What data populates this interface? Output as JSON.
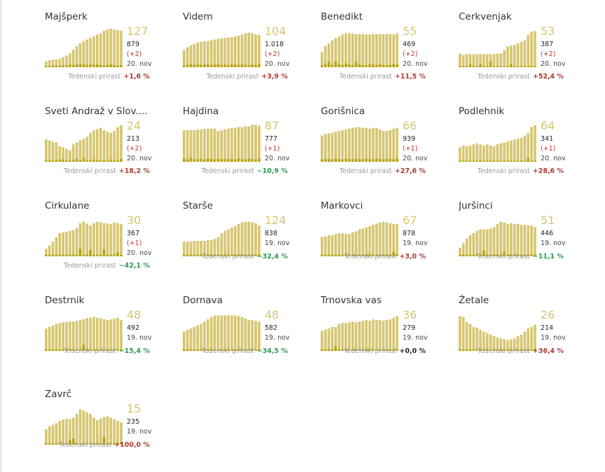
{
  "weekly_label": "Tedenski prirast",
  "colors": {
    "bar": "#d6c671",
    "bar_dark": "#b7a40e",
    "up": "#b03a2e",
    "down": "#2e9a54",
    "flat": "#222222"
  },
  "chart_data": [
    {
      "type": "bar",
      "title": "Majšperk",
      "current": "127",
      "total": "879",
      "change": "(+2)",
      "date": "20. nov",
      "weekly": "+1,6 %",
      "trend": "up",
      "values": [
        15,
        18,
        20,
        20,
        22,
        26,
        30,
        36,
        45,
        55,
        62,
        68,
        72,
        76,
        80,
        85,
        88,
        95,
        98,
        100,
        98,
        96,
        95
      ],
      "dark": [
        3,
        3,
        4,
        4,
        4,
        5,
        5,
        7,
        6,
        7,
        8,
        8,
        6,
        7,
        6,
        7,
        6,
        5,
        6,
        8,
        5,
        4,
        5
      ]
    },
    {
      "type": "bar",
      "title": "Videm",
      "current": "104",
      "total": "1.018",
      "change": "(+2)",
      "date": "20. nov",
      "weekly": "+3,9 %",
      "trend": "up",
      "values": [
        45,
        52,
        57,
        60,
        64,
        66,
        67,
        68,
        70,
        72,
        74,
        75,
        76,
        77,
        78,
        80,
        82,
        85,
        88,
        90,
        88,
        85,
        84
      ],
      "dark": [
        4,
        6,
        8,
        6,
        8,
        6,
        7,
        8,
        6,
        7,
        8,
        6,
        7,
        6,
        8,
        7,
        6,
        8,
        7,
        6,
        7,
        6,
        8
      ]
    },
    {
      "type": "bar",
      "title": "Benedikt",
      "current": "55",
      "total": "469",
      "change": "(+2)",
      "date": "20. nov",
      "weekly": "+11,5 %",
      "trend": "up",
      "values": [
        40,
        55,
        62,
        70,
        76,
        80,
        85,
        88,
        88,
        88,
        86,
        86,
        86,
        85,
        85,
        86,
        86,
        86,
        86,
        86,
        86,
        85,
        88
      ],
      "dark": [
        5,
        8,
        14,
        6,
        15,
        8,
        6,
        10,
        7,
        6,
        14,
        8,
        6,
        5,
        8,
        7,
        6,
        8,
        6,
        5,
        6,
        8,
        8
      ]
    },
    {
      "type": "bar",
      "title": "Cerkvenjak",
      "current": "53",
      "total": "387",
      "change": "(+2)",
      "date": "20. nov",
      "weekly": "+52,4 %",
      "trend": "up",
      "values": [
        36,
        32,
        34,
        34,
        34,
        34,
        34,
        34,
        34,
        34,
        34,
        35,
        36,
        44,
        54,
        56,
        58,
        62,
        66,
        70,
        84,
        92,
        94
      ],
      "dark": [
        3,
        3,
        3,
        8,
        3,
        3,
        8,
        3,
        3,
        15,
        3,
        3,
        3,
        3,
        3,
        8,
        3,
        3,
        3,
        3,
        3,
        3,
        3
      ]
    },
    {
      "type": "bar",
      "title": "Sveti Andraž v Slov....",
      "current": "24",
      "total": "213",
      "change": "(+2)",
      "date": "20. nov",
      "weekly": "+18,2 %",
      "trend": "up",
      "values": [
        58,
        55,
        52,
        50,
        40,
        38,
        34,
        30,
        45,
        50,
        56,
        60,
        65,
        75,
        82,
        85,
        88,
        82,
        78,
        75,
        80,
        90,
        95
      ],
      "dark": [
        4,
        4,
        4,
        4,
        6,
        6,
        4,
        4,
        4,
        8,
        4,
        10,
        4,
        4,
        6,
        4,
        4,
        4,
        4,
        6,
        4,
        4,
        8
      ]
    },
    {
      "type": "bar",
      "title": "Hajdina",
      "current": "87",
      "total": "777",
      "change": "(+1)",
      "date": "20. nov",
      "weekly": "−10,9 %",
      "trend": "down",
      "values": [
        82,
        82,
        82,
        82,
        84,
        84,
        86,
        86,
        86,
        86,
        80,
        82,
        84,
        86,
        88,
        88,
        90,
        90,
        92,
        92,
        96,
        96,
        94
      ],
      "dark": [
        8,
        6,
        10,
        6,
        7,
        8,
        6,
        9,
        7,
        6,
        8,
        7,
        6,
        8,
        7,
        6,
        9,
        7,
        6,
        8,
        7,
        6,
        8
      ]
    },
    {
      "type": "bar",
      "title": "Gorišnica",
      "current": "66",
      "total": "939",
      "change": "(+1)",
      "date": "20. nov",
      "weekly": "+27,6 %",
      "trend": "up",
      "values": [
        68,
        72,
        74,
        75,
        78,
        80,
        82,
        84,
        86,
        88,
        90,
        90,
        88,
        88,
        86,
        88,
        88,
        84,
        80,
        80,
        82,
        86,
        88
      ],
      "dark": [
        6,
        8,
        7,
        6,
        8,
        7,
        6,
        8,
        7,
        6,
        8,
        7,
        6,
        8,
        7,
        6,
        8,
        7,
        6,
        8,
        7,
        6,
        8
      ]
    },
    {
      "type": "bar",
      "title": "Podlehnik",
      "current": "64",
      "total": "341",
      "change": "(+1)",
      "date": "20. nov",
      "weekly": "+28,6 %",
      "trend": "up",
      "values": [
        38,
        42,
        40,
        42,
        45,
        48,
        45,
        42,
        45,
        42,
        40,
        45,
        48,
        50,
        52,
        55,
        58,
        60,
        62,
        68,
        75,
        90,
        95
      ],
      "dark": [
        3,
        3,
        3,
        3,
        3,
        3,
        3,
        3,
        3,
        3,
        3,
        3,
        3,
        3,
        3,
        3,
        3,
        3,
        3,
        3,
        10,
        3,
        3
      ]
    },
    {
      "type": "bar",
      "title": "Cirkulane",
      "current": "30",
      "total": "367",
      "change": "(+1)",
      "date": "20. nov",
      "weekly": "−42,1 %",
      "trend": "down",
      "values": [
        20,
        28,
        38,
        50,
        60,
        62,
        64,
        66,
        68,
        74,
        86,
        90,
        85,
        80,
        86,
        90,
        88,
        86,
        85,
        84,
        88,
        86,
        84
      ],
      "dark": [
        4,
        4,
        4,
        5,
        4,
        4,
        4,
        4,
        4,
        4,
        20,
        4,
        4,
        16,
        4,
        4,
        4,
        18,
        4,
        4,
        4,
        10,
        4
      ]
    },
    {
      "type": "bar",
      "title": "Starše",
      "current": "124",
      "total": "838",
      "change": "",
      "date": "19. nov",
      "weekly": "−32,4 %",
      "trend": "down",
      "values": [
        38,
        38,
        38,
        40,
        40,
        40,
        40,
        42,
        42,
        45,
        50,
        60,
        66,
        70,
        74,
        78,
        84,
        88,
        90,
        90,
        88,
        86,
        80
      ],
      "dark": [
        4,
        4,
        4,
        4,
        4,
        4,
        4,
        4,
        4,
        4,
        4,
        4,
        4,
        4,
        4,
        4,
        4,
        4,
        4,
        4,
        4,
        4,
        4
      ]
    },
    {
      "type": "bar",
      "title": "Markovci",
      "current": "67",
      "total": "878",
      "change": "",
      "date": "19. nov",
      "weekly": "+3,0 %",
      "trend": "up",
      "values": [
        50,
        52,
        55,
        55,
        58,
        60,
        60,
        58,
        58,
        62,
        65,
        70,
        72,
        75,
        78,
        82,
        85,
        88,
        90,
        88,
        86,
        84,
        84
      ],
      "dark": [
        4,
        4,
        4,
        4,
        4,
        4,
        4,
        4,
        4,
        4,
        4,
        4,
        4,
        4,
        4,
        4,
        4,
        4,
        4,
        4,
        4,
        12,
        4
      ]
    },
    {
      "type": "bar",
      "title": "Juršinci",
      "current": "51",
      "total": "446",
      "change": "",
      "date": "19. nov",
      "weekly": "−11,1 %",
      "trend": "down",
      "values": [
        22,
        34,
        46,
        55,
        60,
        66,
        70,
        70,
        70,
        72,
        76,
        84,
        90,
        88,
        84,
        86,
        84,
        84,
        82,
        82,
        80,
        80,
        76
      ],
      "dark": [
        4,
        4,
        4,
        4,
        4,
        4,
        4,
        15,
        4,
        4,
        4,
        4,
        4,
        12,
        4,
        4,
        4,
        4,
        4,
        4,
        4,
        4,
        4
      ]
    },
    {
      "type": "bar",
      "title": "Destrnik",
      "current": "48",
      "total": "492",
      "change": "",
      "date": "19. nov",
      "weekly": "−15,4 %",
      "trend": "down",
      "values": [
        58,
        62,
        66,
        70,
        72,
        74,
        75,
        76,
        76,
        78,
        80,
        82,
        85,
        86,
        88,
        86,
        84,
        82,
        80,
        82,
        84,
        86,
        80
      ],
      "dark": [
        4,
        4,
        4,
        4,
        4,
        4,
        4,
        4,
        4,
        4,
        4,
        16,
        4,
        4,
        4,
        4,
        4,
        4,
        4,
        4,
        4,
        4,
        4
      ]
    },
    {
      "type": "bar",
      "title": "Dornava",
      "current": "48",
      "total": "582",
      "change": "",
      "date": "19. nov",
      "weekly": "−34,5 %",
      "trend": "down",
      "values": [
        50,
        54,
        58,
        62,
        66,
        70,
        76,
        82,
        88,
        92,
        92,
        92,
        92,
        92,
        92,
        92,
        90,
        88,
        84,
        80,
        80,
        78,
        76
      ],
      "dark": [
        4,
        4,
        4,
        4,
        4,
        4,
        4,
        4,
        4,
        4,
        4,
        4,
        4,
        4,
        4,
        4,
        4,
        4,
        4,
        4,
        4,
        4,
        4
      ]
    },
    {
      "type": "bar",
      "title": "Trnovska vas",
      "current": "36",
      "total": "279",
      "change": "",
      "date": "19. nov",
      "weekly": "+0,0 %",
      "trend": "flat",
      "values": [
        52,
        55,
        58,
        62,
        62,
        70,
        72,
        72,
        74,
        76,
        74,
        76,
        78,
        80,
        78,
        82,
        80,
        80,
        78,
        80,
        82,
        86,
        90
      ],
      "dark": [
        4,
        4,
        4,
        4,
        12,
        4,
        4,
        4,
        4,
        4,
        4,
        4,
        4,
        4,
        4,
        4,
        4,
        4,
        4,
        4,
        4,
        4,
        4
      ]
    },
    {
      "type": "bar",
      "title": "Žetale",
      "current": "26",
      "total": "214",
      "change": "",
      "date": "19. nov",
      "weekly": "+36,4 %",
      "trend": "up",
      "values": [
        90,
        88,
        75,
        70,
        62,
        60,
        55,
        50,
        46,
        42,
        38,
        35,
        32,
        30,
        28,
        30,
        32,
        38,
        42,
        50,
        58,
        62,
        68
      ],
      "dark": [
        4,
        4,
        4,
        4,
        4,
        4,
        4,
        4,
        4,
        4,
        4,
        4,
        4,
        4,
        4,
        4,
        4,
        4,
        4,
        4,
        4,
        4,
        4
      ]
    },
    {
      "type": "bar",
      "title": "Zavrč",
      "current": "15",
      "total": "235",
      "change": "",
      "date": "19. nov",
      "weekly": "+100,0 %",
      "trend": "up",
      "values": [
        40,
        48,
        52,
        56,
        62,
        65,
        68,
        66,
        70,
        80,
        92,
        88,
        84,
        80,
        70,
        64,
        68,
        72,
        74,
        70,
        66,
        62,
        58
      ],
      "dark": [
        4,
        4,
        4,
        4,
        4,
        4,
        4,
        12,
        16,
        4,
        4,
        4,
        4,
        4,
        4,
        4,
        4,
        20,
        4,
        4,
        4,
        4,
        4
      ]
    }
  ]
}
